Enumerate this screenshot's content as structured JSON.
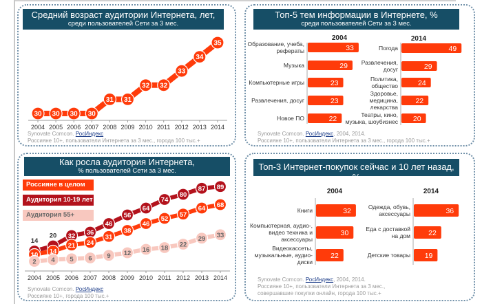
{
  "source": {
    "prefix": "Synovate Comcon. ",
    "link": "РосИндекс"
  },
  "panels": {
    "avg_age": {
      "note": "Россияне 10+, пользователи Интернета за 3 мес., города 100 тыс.+"
    },
    "top5": {
      "years_suffix": ", 2004, 2014.",
      "note": "Россияне 10+, пользователи Интернета за 3 мес., города 100 тыс.+"
    },
    "growth": {
      "note": "Россияне 10+, города 100 тыс.+"
    },
    "purchases": {
      "years_suffix": ", 2004, 2014.",
      "note1": "Россияне 10+, пользователи Интернета за 3 мес.,",
      "note2": "совершавшие покупки онлайн, города 100 тыс.+"
    }
  },
  "colors": {
    "title_bar": "#164e66",
    "accent": "#ff3b0a",
    "dark_red": "#b3121c",
    "pink": "#f8c8bf"
  },
  "chart_data": [
    {
      "type": "line",
      "title": "Средний возраст аудитории Интернета, лет,",
      "subtitle": "среди пользователей Сети за 3 мес.",
      "x": [
        "2004",
        "2005",
        "2006",
        "2007",
        "2008",
        "2009",
        "2010",
        "2011",
        "2012",
        "2013",
        "2014"
      ],
      "series": [
        {
          "values": [
            30,
            30,
            30,
            30,
            31,
            31,
            32,
            32,
            33,
            34,
            35
          ]
        }
      ]
    },
    {
      "type": "bar",
      "title": "Топ-5 тем информации в Интернете, %",
      "subtitle": "среди пользователей Сети за 3 мес.",
      "groups": [
        {
          "name": "2004",
          "categories": [
            "Образование, учеба,\nрефераты",
            "Музыка",
            "Компьютерные игры",
            "Развлечения, досуг",
            "Новое ПО"
          ],
          "values": [
            33,
            29,
            23,
            23,
            22
          ]
        },
        {
          "name": "2014",
          "categories": [
            "Погода",
            "Развлечения,\nдосуг",
            "Политика,\nобщество",
            "Здоровье,\nмедицина,\nлекарства",
            "Театры, кино,\nмузыка, шоубизнес"
          ],
          "values": [
            49,
            29,
            24,
            22,
            20
          ]
        }
      ]
    },
    {
      "type": "line",
      "title": "Как росла аудитория Интернета,",
      "subtitle": "% пользователей Сети за 3 мес.",
      "x": [
        "2004",
        "2005",
        "2006",
        "2007",
        "2008",
        "2009",
        "2010",
        "2011",
        "2012",
        "2013",
        "2014"
      ],
      "legend": "top-left",
      "series": [
        {
          "name": "Россияне в целом",
          "values": [
            10,
            14,
            21,
            24,
            31,
            38,
            46,
            52,
            57,
            64,
            68
          ]
        },
        {
          "name": "Аудитория 10-19 лет",
          "values": [
            14,
            20,
            32,
            36,
            46,
            56,
            64,
            74,
            80,
            87,
            89
          ]
        },
        {
          "name": "Аудитория 55+",
          "values": [
            2,
            4,
            5,
            6,
            9,
            12,
            16,
            18,
            22,
            29,
            33
          ]
        }
      ]
    },
    {
      "type": "bar",
      "title": "Топ-3 Интернет-покупок сейчас и 10 лет назад, %",
      "groups": [
        {
          "name": "2004",
          "categories": [
            "Книги",
            "Компьютерная, аудио-,\nвидео техника и\nаксессуары",
            "Видеокассеты,\nмузыкальные, аудио-\nдиски"
          ],
          "values": [
            32,
            30,
            22
          ]
        },
        {
          "name": "2014",
          "categories": [
            "Одежда, обувь,\nаксессуары",
            "Еда с доставкой\nна дом",
            "Детские товары"
          ],
          "values": [
            36,
            22,
            19
          ]
        }
      ]
    }
  ]
}
